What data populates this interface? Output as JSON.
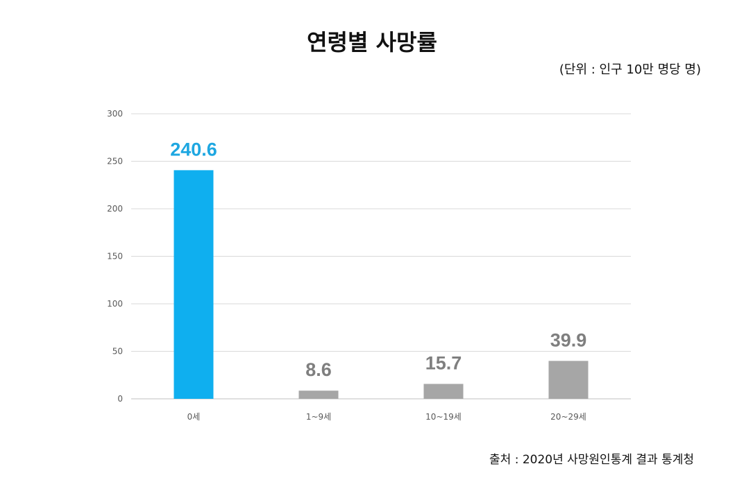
{
  "chart_data": {
    "type": "bar",
    "title": "연령별 사망률",
    "unit_note": "(단위 : 인구 10만 명당 명)",
    "source_note": "출처 :  2020년 사망원인통계 결과  통계청",
    "categories": [
      "0세",
      "1~9세",
      "10~19세",
      "20~29세"
    ],
    "values": [
      240.6,
      8.6,
      15.7,
      39.9
    ],
    "value_labels": [
      "240.6",
      "8.6",
      "15.7",
      "39.9"
    ],
    "ylim": [
      0,
      300
    ],
    "yticks": [
      0,
      50,
      100,
      150,
      200,
      250,
      300
    ],
    "ytick_labels": [
      "0",
      "50",
      "100",
      "150",
      "200",
      "250",
      "300"
    ],
    "grid": true,
    "legend": "none",
    "bar_colors": [
      "#0fafef",
      "#a6a6a6",
      "#a6a6a6",
      "#a6a6a6"
    ],
    "label_colors": [
      "#1ea7e1",
      "#7f7f7f",
      "#7f7f7f",
      "#7f7f7f"
    ],
    "gridline_color": "#d9d9d9",
    "axis_line_color": "#bfbfbf"
  }
}
